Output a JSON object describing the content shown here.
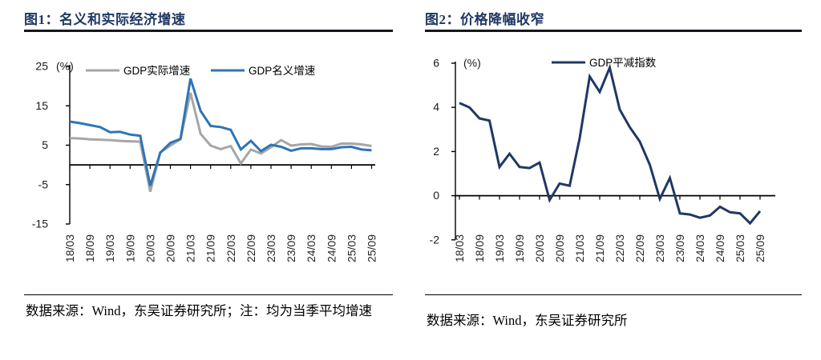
{
  "figures": [
    {
      "title": "图1：名义和实际经济增速",
      "source_note": "数据来源：Wind，东吴证券研究所；注：均为当季平均增速"
    },
    {
      "title": "图2：价格降幅收窄",
      "source_note": "数据来源：Wind，东吴证券研究所"
    }
  ],
  "colors": {
    "title_navy": "#1F3864",
    "nominal_blue": "#2E75B6",
    "real_gray": "#A6A6A6",
    "deflator_navy": "#1F3864",
    "axis_black": "#000000"
  },
  "chart_data": [
    {
      "type": "line",
      "title": "图1：名义和实际经济增速",
      "unit_label": "(%)",
      "xlabel": "",
      "ylabel": "(%)",
      "ylim": [
        -15,
        25
      ],
      "yticks": [
        25,
        15,
        5,
        -5,
        -15
      ],
      "grid": false,
      "legend_position": "top",
      "x_tick_step": 2,
      "x": [
        "18/03",
        "18/06",
        "18/09",
        "18/12",
        "19/03",
        "19/06",
        "19/09",
        "19/12",
        "20/03",
        "20/06",
        "20/09",
        "20/12",
        "21/03",
        "21/06",
        "21/09",
        "21/12",
        "22/03",
        "22/06",
        "22/09",
        "22/12",
        "23/03",
        "23/06",
        "23/09",
        "23/12",
        "24/03",
        "24/06",
        "24/09",
        "24/12",
        "25/03",
        "25/06",
        "25/09"
      ],
      "x_tick_labels": [
        "18/03",
        "18/09",
        "19/03",
        "19/09",
        "20/03",
        "20/09",
        "21/03",
        "21/09",
        "22/03",
        "22/09",
        "23/03",
        "23/09",
        "24/03",
        "24/09",
        "25/03",
        "25/09"
      ],
      "series": [
        {
          "name": "GDP实际增速",
          "color": "#A6A6A6",
          "values": [
            6.8,
            6.7,
            6.5,
            6.4,
            6.3,
            6.1,
            6.0,
            5.9,
            -6.8,
            3.2,
            4.9,
            6.5,
            18.3,
            7.9,
            4.9,
            4.0,
            4.8,
            0.4,
            3.9,
            2.9,
            4.5,
            6.3,
            4.9,
            5.2,
            5.3,
            4.7,
            4.6,
            5.4,
            5.4,
            5.2,
            4.8
          ]
        },
        {
          "name": "GDP名义增速",
          "color": "#2E75B6",
          "values": [
            11.0,
            10.6,
            10.1,
            9.6,
            8.3,
            8.4,
            7.7,
            7.4,
            -5.3,
            3.1,
            5.6,
            6.6,
            21.9,
            13.7,
            9.9,
            9.6,
            8.9,
            3.9,
            6.1,
            3.5,
            5.1,
            4.6,
            3.6,
            4.2,
            4.2,
            4.0,
            4.0,
            4.5,
            4.6,
            3.9,
            3.7
          ]
        }
      ]
    },
    {
      "type": "line",
      "title": "图2：价格降幅收窄",
      "unit_label": "(%)",
      "xlabel": "",
      "ylabel": "(%)",
      "ylim": [
        -2,
        6
      ],
      "yticks": [
        6,
        4,
        2,
        0,
        -2
      ],
      "grid": false,
      "legend_position": "top",
      "x_tick_step": 2,
      "x": [
        "18/03",
        "18/06",
        "18/09",
        "18/12",
        "19/03",
        "19/06",
        "19/09",
        "19/12",
        "20/03",
        "20/06",
        "20/09",
        "20/12",
        "21/03",
        "21/06",
        "21/09",
        "21/12",
        "22/03",
        "22/06",
        "22/09",
        "22/12",
        "23/03",
        "23/06",
        "23/09",
        "23/12",
        "24/03",
        "24/06",
        "24/09",
        "24/12",
        "25/03",
        "25/06",
        "25/09"
      ],
      "x_tick_labels": [
        "18/03",
        "18/09",
        "19/03",
        "19/09",
        "20/03",
        "20/09",
        "21/03",
        "21/09",
        "22/03",
        "22/09",
        "23/03",
        "23/09",
        "24/03",
        "24/09",
        "25/03",
        "25/09"
      ],
      "series": [
        {
          "name": "GDP平减指数",
          "color": "#1F3864",
          "values": [
            4.2,
            4.0,
            3.5,
            3.4,
            1.3,
            1.9,
            1.3,
            1.25,
            1.5,
            -0.2,
            0.55,
            0.45,
            2.6,
            5.4,
            4.7,
            5.8,
            3.9,
            3.1,
            2.45,
            1.4,
            -0.15,
            0.8,
            -0.8,
            -0.85,
            -1.0,
            -0.9,
            -0.5,
            -0.75,
            -0.8,
            -1.25,
            -0.7
          ]
        }
      ]
    }
  ]
}
